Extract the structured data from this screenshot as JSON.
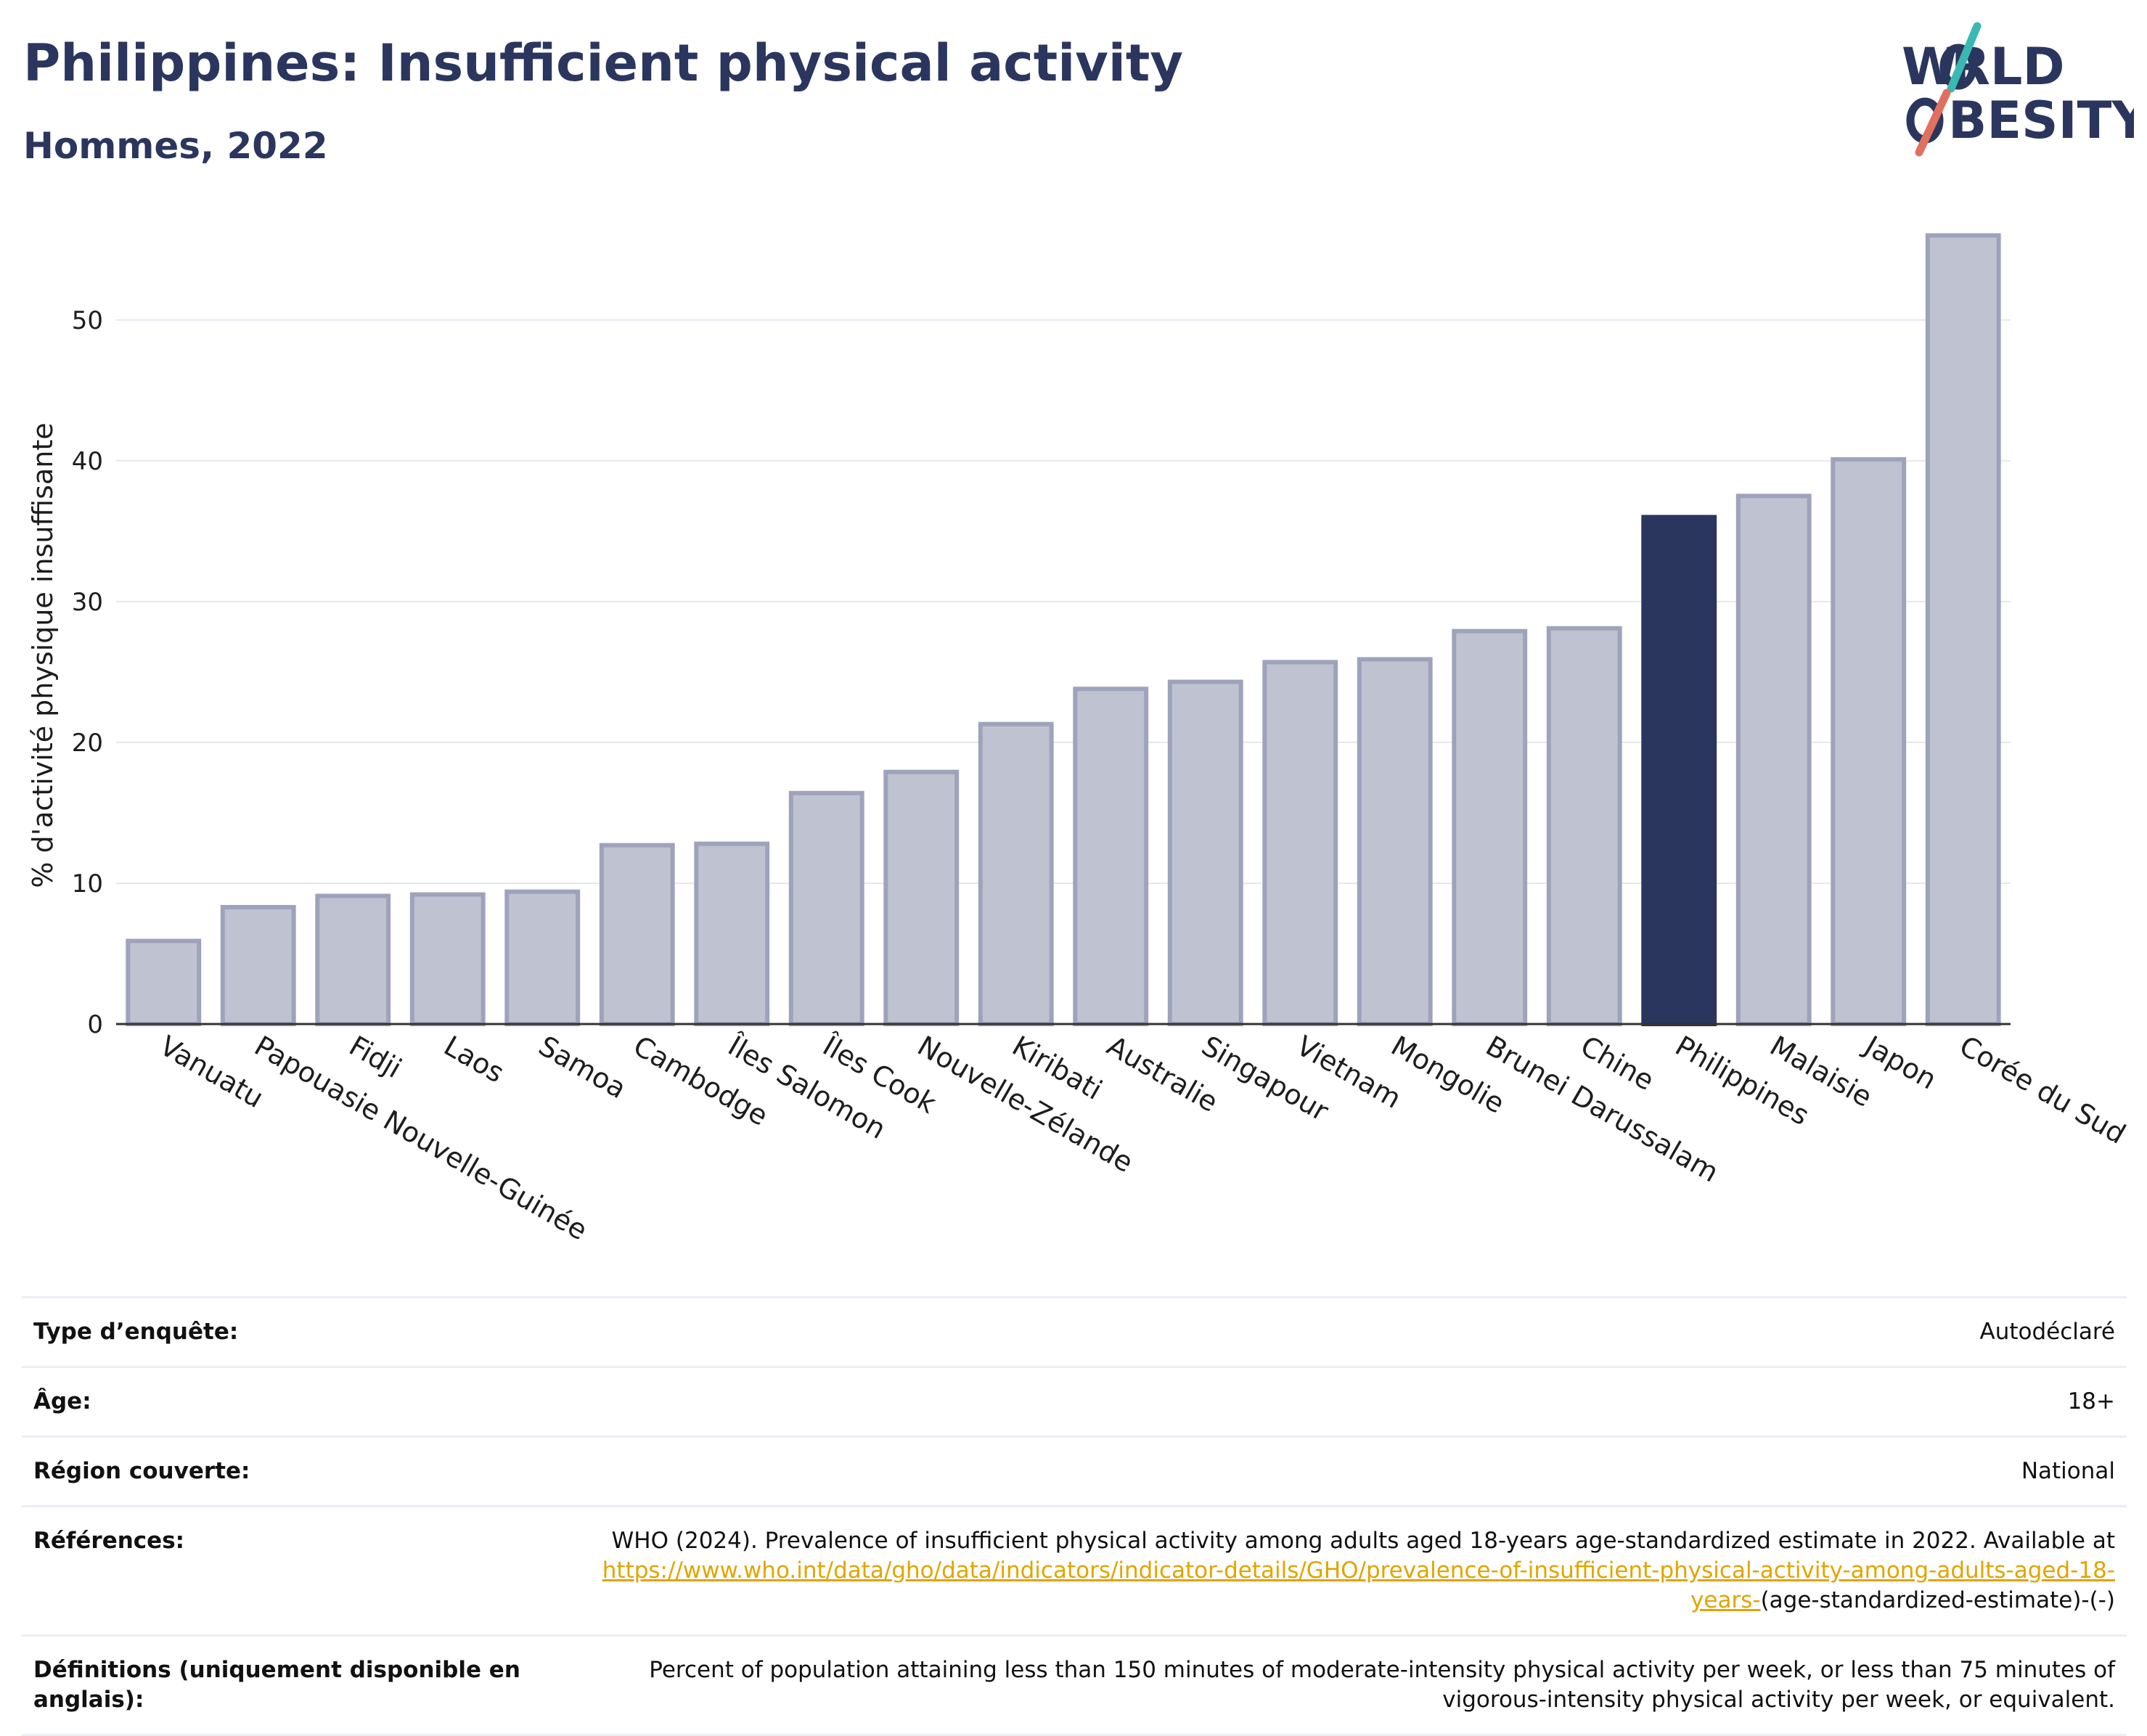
{
  "header": {
    "title": "Philippines: Insufficient physical activity",
    "subtitle": "Hommes, 2022"
  },
  "logo": {
    "line1": "W RLD",
    "line2": "BESITY",
    "text": "WORLD OBESITY"
  },
  "colors": {
    "title": "#2b365f",
    "bar_default": "#bfc2d0",
    "bar_default_stroke": "#9ea3bb",
    "bar_highlight": "#2b365f",
    "logo_teal": "#3ab8b2",
    "logo_coral": "#e0705f",
    "link": "#e0a500"
  },
  "chart_data": {
    "type": "bar",
    "ylabel": "% d'activité physique insuffisante",
    "ylim": [
      0,
      57
    ],
    "yticks": [
      0,
      10,
      20,
      30,
      40,
      50
    ],
    "grid": true,
    "highlight": "Philippines",
    "categories": [
      "Vanuatu",
      "Papouasie Nouvelle-Guinée",
      "Fidji",
      "Laos",
      "Samoa",
      "Cambodge",
      "Îles Salomon",
      "Îles Cook",
      "Nouvelle-Zélande",
      "Kiribati",
      "Australie",
      "Singapour",
      "Vietnam",
      "Mongolie",
      "Brunei Darussalam",
      "Chine",
      "Philippines",
      "Malaisie",
      "Japon",
      "Corée du Sud"
    ],
    "values": [
      5.9,
      8.3,
      9.1,
      9.2,
      9.4,
      12.7,
      12.8,
      16.4,
      17.9,
      21.3,
      23.8,
      24.3,
      25.7,
      25.9,
      27.9,
      28.1,
      36.0,
      37.5,
      40.1,
      56.0
    ]
  },
  "info": [
    {
      "label": "Type d’enquête:",
      "value": "Autodéclaré"
    },
    {
      "label": "Âge:",
      "value": "18+"
    },
    {
      "label": "Région couverte:",
      "value": "National"
    },
    {
      "label": "Références:",
      "value": "WHO (2024). Prevalence of insufficient physical activity among adults aged 18-years age-standardized estimate in 2022. Available at ",
      "link": "https://www.who.int/data/gho/data/indicators/indicator-details/GHO/prevalence-of-insufficient-physical-activity-among-adults-aged-18-years-",
      "value_after": "(age-standardized-estimate)-(-)"
    },
    {
      "label": "Définitions (uniquement disponible en anglais):",
      "value": "Percent of population attaining less than 150 minutes of moderate-intensity physical activity per week, or less than 75 minutes of vigorous-intensity physical activity per week, or equivalent."
    }
  ]
}
